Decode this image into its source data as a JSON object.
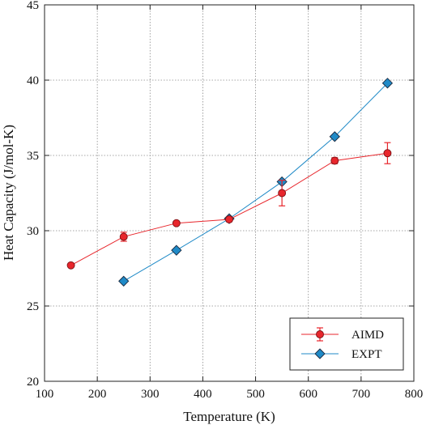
{
  "chart_data": {
    "type": "line",
    "xlabel": "Temperature (K)",
    "ylabel": "Heat Capacity (J/mol-K)",
    "xlim": [
      100,
      800
    ],
    "ylim": [
      20,
      45
    ],
    "xticks": [
      100,
      200,
      300,
      400,
      500,
      600,
      700,
      800
    ],
    "yticks": [
      20,
      25,
      30,
      35,
      40,
      45
    ],
    "grid": true,
    "legend_position": "bottom-right",
    "series": [
      {
        "name": "AIMD",
        "color": "#e8262c",
        "marker": "circle",
        "x": [
          150,
          250,
          350,
          450,
          550,
          650,
          750
        ],
        "y": [
          27.7,
          29.6,
          30.5,
          30.75,
          32.5,
          34.65,
          35.15
        ],
        "yerr": [
          0.1,
          0.3,
          0.12,
          0.15,
          0.85,
          0.2,
          0.7
        ]
      },
      {
        "name": "EXPT",
        "color": "#1f8ac7",
        "marker": "diamond",
        "x": [
          250,
          350,
          450,
          550,
          650,
          750
        ],
        "y": [
          26.65,
          28.7,
          30.8,
          33.25,
          36.25,
          39.8
        ]
      }
    ]
  }
}
